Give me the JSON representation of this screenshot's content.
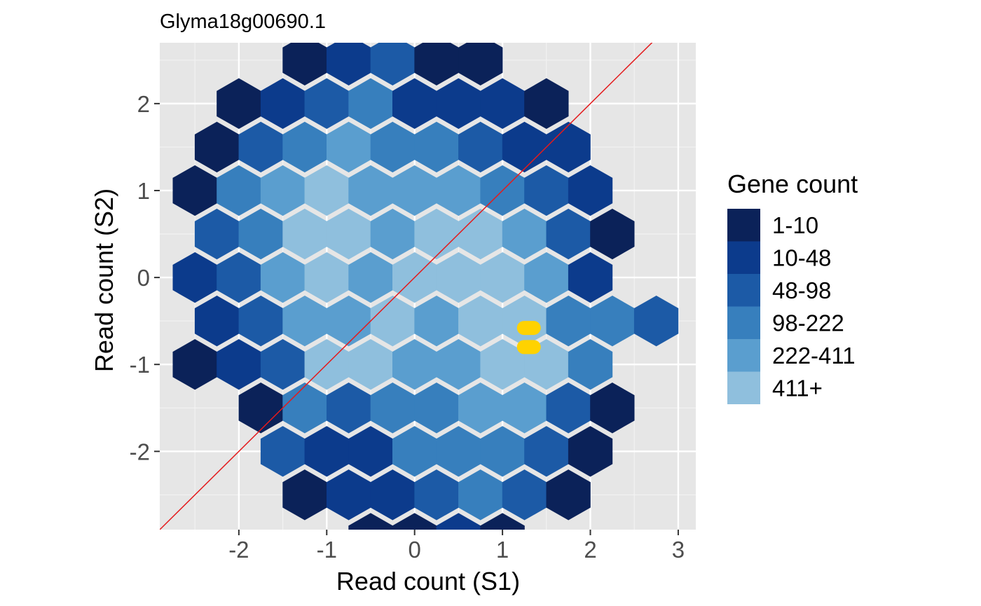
{
  "chart_data": {
    "type": "hexbin",
    "title": "Glyma18g00690.1",
    "xlabel": "Read count (S1)",
    "ylabel": "Read count (S2)",
    "xlim": [
      -2.9,
      3.2
    ],
    "ylim": [
      -2.9,
      2.7
    ],
    "x_ticks": [
      -2,
      -1,
      0,
      1,
      2,
      3
    ],
    "y_ticks": [
      -2,
      -1,
      0,
      1,
      2
    ],
    "x_tick_labels": [
      "-2",
      "-1",
      "0",
      "1",
      "2",
      "3"
    ],
    "y_tick_labels": [
      "-2",
      "-1",
      "0",
      "1",
      "2"
    ],
    "grid": true,
    "hex_size": {
      "dx": 0.5,
      "dy": 0.5
    },
    "legend": {
      "title": "Gene count",
      "placement": "right",
      "categories": [
        "1-10",
        "10-48",
        "48-98",
        "98-222",
        "222-411",
        "411+"
      ],
      "colors": [
        "#0b2259",
        "#0c3b8c",
        "#1c5aa6",
        "#377fbd",
        "#5a9ecf",
        "#8fbfdd"
      ]
    },
    "reference_line": {
      "slope": 1,
      "intercept": 0,
      "color": "#e41a1c"
    },
    "highlight_points": {
      "color": "#ffd200",
      "points": [
        [
          1.3,
          -0.58
        ],
        [
          1.3,
          -0.8
        ]
      ]
    },
    "bins": [
      [
        -1.25,
        2.5,
        0
      ],
      [
        -0.75,
        2.5,
        1
      ],
      [
        -0.25,
        2.5,
        2
      ],
      [
        0.25,
        2.5,
        0
      ],
      [
        0.75,
        2.5,
        0
      ],
      [
        -2.0,
        2.0,
        0
      ],
      [
        -1.5,
        2.0,
        1
      ],
      [
        -1.0,
        2.0,
        2
      ],
      [
        -0.5,
        2.0,
        3
      ],
      [
        0.0,
        2.0,
        1
      ],
      [
        0.5,
        2.0,
        1
      ],
      [
        1.0,
        2.0,
        1
      ],
      [
        1.5,
        2.0,
        0
      ],
      [
        -2.25,
        1.5,
        0
      ],
      [
        -1.75,
        1.5,
        2
      ],
      [
        -1.25,
        1.5,
        3
      ],
      [
        -0.75,
        1.5,
        4
      ],
      [
        -0.25,
        1.5,
        3
      ],
      [
        0.25,
        1.5,
        3
      ],
      [
        0.75,
        1.5,
        2
      ],
      [
        1.25,
        1.5,
        1
      ],
      [
        1.75,
        1.5,
        1
      ],
      [
        -2.5,
        1.0,
        0
      ],
      [
        -2.0,
        1.0,
        3
      ],
      [
        -1.5,
        1.0,
        4
      ],
      [
        -1.0,
        1.0,
        5
      ],
      [
        -0.5,
        1.0,
        4
      ],
      [
        0.0,
        1.0,
        4
      ],
      [
        0.5,
        1.0,
        4
      ],
      [
        1.0,
        1.0,
        3
      ],
      [
        1.5,
        1.0,
        2
      ],
      [
        2.0,
        1.0,
        1
      ],
      [
        -2.25,
        0.5,
        2
      ],
      [
        -1.75,
        0.5,
        3
      ],
      [
        -1.25,
        0.5,
        5
      ],
      [
        -0.75,
        0.5,
        5
      ],
      [
        -0.25,
        0.5,
        4
      ],
      [
        0.25,
        0.5,
        5
      ],
      [
        0.75,
        0.5,
        5
      ],
      [
        1.25,
        0.5,
        4
      ],
      [
        1.75,
        0.5,
        2
      ],
      [
        2.25,
        0.5,
        0
      ],
      [
        -2.5,
        0.0,
        1
      ],
      [
        -2.0,
        0.0,
        2
      ],
      [
        -1.5,
        0.0,
        4
      ],
      [
        -1.0,
        0.0,
        5
      ],
      [
        -0.5,
        0.0,
        4
      ],
      [
        0.0,
        0.0,
        5
      ],
      [
        0.5,
        0.0,
        5
      ],
      [
        1.0,
        0.0,
        5
      ],
      [
        1.5,
        0.0,
        4
      ],
      [
        2.0,
        0.0,
        1
      ],
      [
        -2.25,
        -0.5,
        1
      ],
      [
        -1.75,
        -0.5,
        2
      ],
      [
        -1.25,
        -0.5,
        4
      ],
      [
        -0.75,
        -0.5,
        4
      ],
      [
        -0.25,
        -0.5,
        5
      ],
      [
        0.25,
        -0.5,
        4
      ],
      [
        0.75,
        -0.5,
        5
      ],
      [
        1.25,
        -0.5,
        5
      ],
      [
        1.75,
        -0.5,
        3
      ],
      [
        2.25,
        -0.5,
        3
      ],
      [
        2.75,
        -0.5,
        2
      ],
      [
        -2.5,
        -1.0,
        0
      ],
      [
        -2.0,
        -1.0,
        1
      ],
      [
        -1.5,
        -1.0,
        2
      ],
      [
        -1.0,
        -1.0,
        5
      ],
      [
        -0.5,
        -1.0,
        5
      ],
      [
        0.0,
        -1.0,
        4
      ],
      [
        0.5,
        -1.0,
        4
      ],
      [
        1.0,
        -1.0,
        5
      ],
      [
        1.5,
        -1.0,
        5
      ],
      [
        2.0,
        -1.0,
        3
      ],
      [
        -1.75,
        -1.5,
        0
      ],
      [
        -1.25,
        -1.5,
        3
      ],
      [
        -0.75,
        -1.5,
        2
      ],
      [
        -0.25,
        -1.5,
        3
      ],
      [
        0.25,
        -1.5,
        3
      ],
      [
        0.75,
        -1.5,
        4
      ],
      [
        1.25,
        -1.5,
        4
      ],
      [
        1.75,
        -1.5,
        2
      ],
      [
        2.25,
        -1.5,
        0
      ],
      [
        -1.5,
        -2.0,
        2
      ],
      [
        -1.0,
        -2.0,
        1
      ],
      [
        -0.5,
        -2.0,
        1
      ],
      [
        0.0,
        -2.0,
        3
      ],
      [
        0.5,
        -2.0,
        3
      ],
      [
        1.0,
        -2.0,
        3
      ],
      [
        1.5,
        -2.0,
        2
      ],
      [
        2.0,
        -2.0,
        0
      ],
      [
        -1.25,
        -2.5,
        0
      ],
      [
        -0.75,
        -2.5,
        1
      ],
      [
        -0.25,
        -2.5,
        1
      ],
      [
        0.25,
        -2.5,
        2
      ],
      [
        0.75,
        -2.5,
        3
      ],
      [
        1.25,
        -2.5,
        2
      ],
      [
        1.75,
        -2.5,
        0
      ],
      [
        -0.5,
        -3.0,
        0
      ],
      [
        0.0,
        -3.0,
        0
      ],
      [
        0.5,
        -3.0,
        1
      ],
      [
        1.0,
        -3.0,
        0
      ]
    ]
  }
}
